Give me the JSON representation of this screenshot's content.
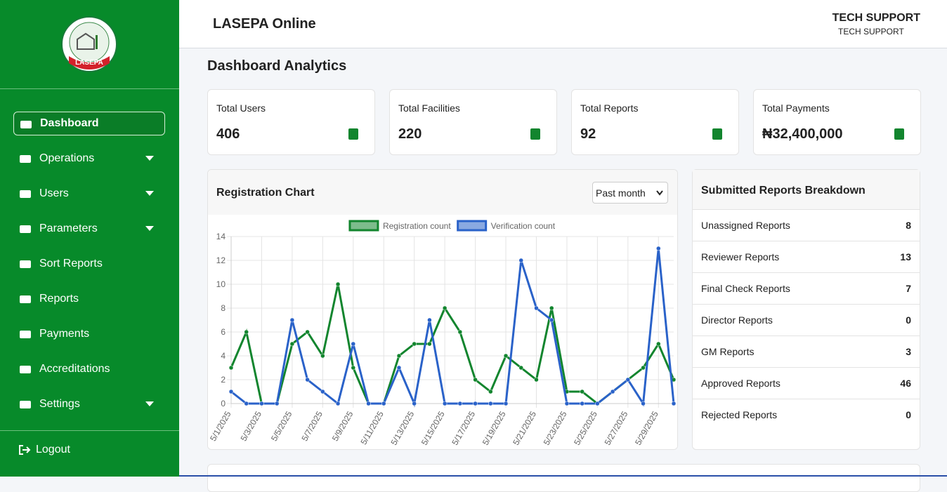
{
  "sidebar": {
    "logo_text": "LASEPA",
    "nav": [
      {
        "label": "Dashboard",
        "active": true,
        "has_dropdown": false
      },
      {
        "label": "Operations",
        "active": false,
        "has_dropdown": true
      },
      {
        "label": "Users",
        "active": false,
        "has_dropdown": true
      },
      {
        "label": "Parameters",
        "active": false,
        "has_dropdown": true
      },
      {
        "label": "Sort Reports",
        "active": false,
        "has_dropdown": false
      },
      {
        "label": "Reports",
        "active": false,
        "has_dropdown": false
      },
      {
        "label": "Payments",
        "active": false,
        "has_dropdown": false
      },
      {
        "label": "Accreditations",
        "active": false,
        "has_dropdown": false
      },
      {
        "label": "Settings",
        "active": false,
        "has_dropdown": true
      }
    ],
    "logout": "Logout"
  },
  "header": {
    "title": "LASEPA Online",
    "user_name": "TECH SUPPORT",
    "user_role": "TECH SUPPORT"
  },
  "page_title": "Dashboard Analytics",
  "stats": [
    {
      "label": "Total Users",
      "value": 406
    },
    {
      "label": "Total Facilities",
      "value": 220
    },
    {
      "label": "Total Reports",
      "value": 92
    },
    {
      "label": "Total Payments",
      "value": "₦32,400,000"
    }
  ],
  "registration_chart": {
    "title": "Registration Chart",
    "filter": "Past month",
    "chart_data": {
      "type": "line",
      "categories": [
        "5/1/2025",
        null,
        "5/3/2025",
        null,
        "5/5/2025",
        null,
        "5/7/2025",
        null,
        "5/9/2025",
        null,
        "5/11/2025",
        null,
        "5/13/2025",
        null,
        "5/15/2025",
        null,
        "5/17/2025",
        null,
        "5/19/2025",
        null,
        "5/21/2025",
        null,
        "5/23/2025",
        null,
        "5/25/2025",
        null,
        "5/27/2025",
        null,
        "5/29/2025",
        null
      ],
      "series": [
        {
          "name": "Registration count",
          "color": "#12852e",
          "values": [
            3,
            6,
            0,
            0,
            5,
            6,
            4,
            10,
            3,
            0,
            0,
            4,
            5,
            5,
            8,
            6,
            2,
            1,
            4,
            3,
            2,
            8,
            1,
            1,
            0,
            1,
            2,
            3,
            5,
            2
          ]
        },
        {
          "name": "Verification count",
          "color": "#2a62c9",
          "values": [
            1,
            0,
            0,
            0,
            7,
            2,
            1,
            0,
            5,
            0,
            0,
            3,
            0,
            7,
            0,
            0,
            0,
            0,
            0,
            12,
            8,
            7,
            0,
            0,
            0,
            1,
            2,
            0,
            13,
            0
          ]
        }
      ],
      "ylim": [
        0,
        14
      ],
      "yticks": [
        0,
        2,
        4,
        6,
        8,
        10,
        12,
        14
      ],
      "grid": true
    }
  },
  "breakdown": {
    "title": "Submitted Reports Breakdown",
    "rows": [
      {
        "label": "Unassigned Reports",
        "value": 8
      },
      {
        "label": "Reviewer Reports",
        "value": 13
      },
      {
        "label": "Final Check Reports",
        "value": 7
      },
      {
        "label": "Director Reports",
        "value": 0
      },
      {
        "label": "GM Reports",
        "value": 3
      },
      {
        "label": "Approved Reports",
        "value": 46
      },
      {
        "label": "Rejected Reports",
        "value": 0
      }
    ]
  }
}
